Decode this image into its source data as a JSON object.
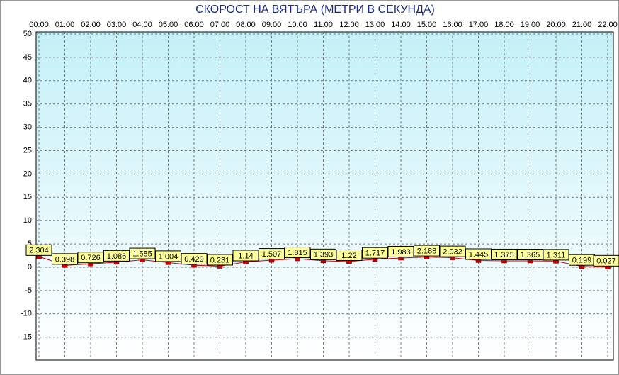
{
  "chart_data": {
    "type": "line",
    "title": "СКОРОСТ НА ВЯТЪРА (МЕТРИ В СЕКУНДА)",
    "categories": [
      "00:00",
      "01:00",
      "02:00",
      "03:00",
      "04:00",
      "05:00",
      "06:00",
      "07:00",
      "08:00",
      "09:00",
      "10:00",
      "11:00",
      "12:00",
      "13:00",
      "14:00",
      "15:00",
      "16:00",
      "17:00",
      "18:00",
      "19:00",
      "20:00",
      "21:00",
      "22:00"
    ],
    "series": [
      {
        "color": "#cc0000",
        "values": [
          2.304,
          0.398,
          0.726,
          1.086,
          1.585,
          1.004,
          0.429,
          0.231,
          1.14,
          1.507,
          1.815,
          1.393,
          1.22,
          1.717,
          1.983,
          2.188,
          2.032,
          1.445,
          1.375,
          1.365,
          1.311,
          0.199,
          0.027
        ]
      }
    ],
    "ylim": [
      -20,
      50
    ],
    "yticks": [
      -15,
      -10,
      -5,
      0,
      5,
      10,
      15,
      20,
      25,
      30,
      35,
      40,
      45,
      50
    ],
    "grid": true,
    "label_color": "#ffff99"
  }
}
